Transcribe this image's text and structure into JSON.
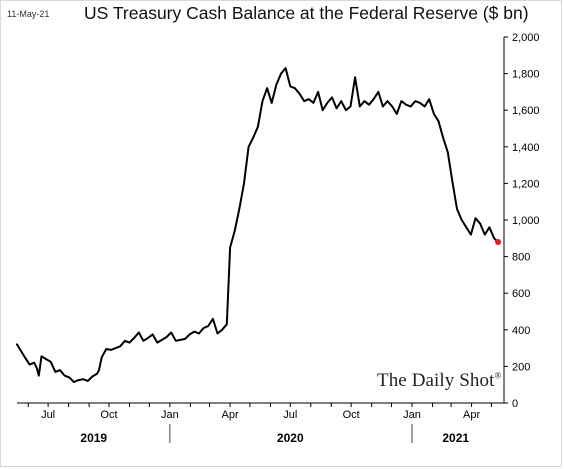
{
  "date_stamp": "11-May-21",
  "watermark": "The Daily Shot",
  "watermark_mark": "®",
  "colors": {
    "line": "#000000",
    "last_point": "#e41a1c",
    "axis": "#000000"
  },
  "chart_data": {
    "type": "line",
    "title": "US Treasury Cash Balance at the Federal Reserve ($ bn)",
    "xlabel": "",
    "ylabel": "",
    "ylim": [
      0,
      2000
    ],
    "y_ticks": [
      0,
      200,
      400,
      600,
      800,
      1000,
      1200,
      1400,
      1600,
      1800,
      2000
    ],
    "y_tick_labels": [
      "0",
      "200",
      "400",
      "600",
      "800",
      "1,000",
      "1,200",
      "1,400",
      "1,600",
      "1,800",
      "2,000"
    ],
    "xlim": [
      "2019-05-15",
      "2021-05-20"
    ],
    "x_ticks": [
      {
        "date": "2019-07-01",
        "label": "Jul"
      },
      {
        "date": "2019-10-01",
        "label": "Oct"
      },
      {
        "date": "2020-01-01",
        "label": "Jan"
      },
      {
        "date": "2020-04-01",
        "label": "Apr"
      },
      {
        "date": "2020-07-01",
        "label": "Jul"
      },
      {
        "date": "2020-10-01",
        "label": "Oct"
      },
      {
        "date": "2021-01-01",
        "label": "Jan"
      },
      {
        "date": "2021-04-01",
        "label": "Apr"
      }
    ],
    "year_labels": [
      {
        "label": "2019",
        "date": "2019-09-08"
      },
      {
        "label": "2020",
        "date": "2020-07-01"
      },
      {
        "label": "2021",
        "date": "2021-03-08"
      }
    ],
    "year_separators": [
      "2020-01-01",
      "2021-01-01"
    ],
    "grid": false,
    "legend": "none",
    "series": [
      {
        "x": [
          "2019-05-15",
          "2019-05-20",
          "2019-05-27",
          "2019-06-03",
          "2019-06-10",
          "2019-06-14",
          "2019-06-17",
          "2019-06-21",
          "2019-06-28",
          "2019-07-05",
          "2019-07-12",
          "2019-07-19",
          "2019-07-26",
          "2019-08-02",
          "2019-08-09",
          "2019-08-16",
          "2019-08-23",
          "2019-08-30",
          "2019-09-06",
          "2019-09-13",
          "2019-09-16",
          "2019-09-20",
          "2019-09-27",
          "2019-10-04",
          "2019-10-11",
          "2019-10-18",
          "2019-10-25",
          "2019-11-01",
          "2019-11-08",
          "2019-11-15",
          "2019-11-22",
          "2019-11-29",
          "2019-12-06",
          "2019-12-13",
          "2019-12-20",
          "2019-12-27",
          "2020-01-03",
          "2020-01-10",
          "2020-01-17",
          "2020-01-24",
          "2020-01-31",
          "2020-02-07",
          "2020-02-14",
          "2020-02-21",
          "2020-02-28",
          "2020-03-06",
          "2020-03-13",
          "2020-03-20",
          "2020-03-27",
          "2020-04-01",
          "2020-04-08",
          "2020-04-15",
          "2020-04-22",
          "2020-04-29",
          "2020-05-06",
          "2020-05-13",
          "2020-05-20",
          "2020-05-27",
          "2020-06-03",
          "2020-06-10",
          "2020-06-17",
          "2020-06-24",
          "2020-07-01",
          "2020-07-08",
          "2020-07-15",
          "2020-07-22",
          "2020-07-29",
          "2020-08-05",
          "2020-08-12",
          "2020-08-19",
          "2020-08-26",
          "2020-09-02",
          "2020-09-09",
          "2020-09-16",
          "2020-09-23",
          "2020-09-30",
          "2020-10-07",
          "2020-10-14",
          "2020-10-21",
          "2020-10-28",
          "2020-11-04",
          "2020-11-11",
          "2020-11-18",
          "2020-11-25",
          "2020-12-02",
          "2020-12-09",
          "2020-12-16",
          "2020-12-23",
          "2020-12-30",
          "2021-01-06",
          "2021-01-13",
          "2021-01-20",
          "2021-01-27",
          "2021-02-03",
          "2021-02-10",
          "2021-02-17",
          "2021-02-24",
          "2021-03-03",
          "2021-03-10",
          "2021-03-17",
          "2021-03-24",
          "2021-03-31",
          "2021-04-07",
          "2021-04-14",
          "2021-04-21",
          "2021-04-28",
          "2021-05-05",
          "2021-05-11"
        ],
        "y": [
          320,
          290,
          250,
          210,
          220,
          190,
          150,
          255,
          240,
          225,
          170,
          180,
          150,
          140,
          115,
          125,
          130,
          120,
          145,
          160,
          180,
          250,
          295,
          290,
          300,
          310,
          340,
          330,
          355,
          385,
          340,
          355,
          375,
          330,
          345,
          360,
          385,
          340,
          345,
          350,
          375,
          390,
          380,
          410,
          420,
          460,
          380,
          400,
          430,
          850,
          940,
          1060,
          1200,
          1400,
          1450,
          1510,
          1650,
          1720,
          1640,
          1740,
          1800,
          1830,
          1730,
          1720,
          1690,
          1650,
          1660,
          1640,
          1700,
          1600,
          1640,
          1670,
          1610,
          1650,
          1600,
          1620,
          1780,
          1620,
          1650,
          1630,
          1660,
          1700,
          1620,
          1650,
          1620,
          1580,
          1650,
          1630,
          1620,
          1650,
          1640,
          1620,
          1660,
          1580,
          1540,
          1450,
          1370,
          1210,
          1060,
          1000,
          960,
          920,
          1010,
          980,
          920,
          960,
          900,
          880
        ]
      }
    ],
    "last_point": {
      "x": "2021-05-11",
      "y": 880
    }
  }
}
